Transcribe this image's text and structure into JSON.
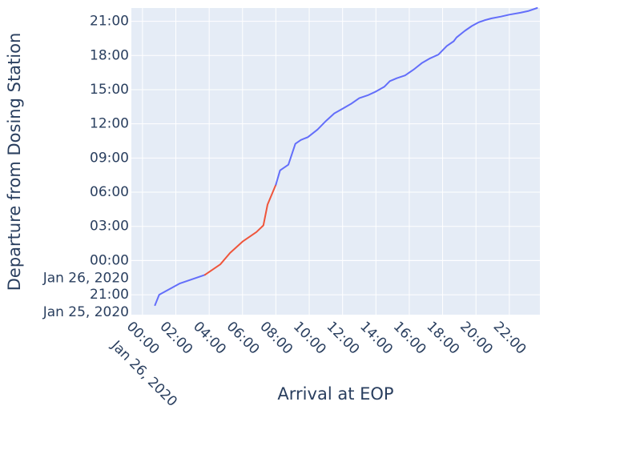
{
  "chart_data": {
    "type": "line",
    "xlabel": "Arrival at EOP",
    "ylabel": "Departure from Dosing Station",
    "x_tick_labels": [
      "00:00",
      "02:00",
      "04:00",
      "06:00",
      "08:00",
      "10:00",
      "12:00",
      "14:00",
      "16:00",
      "18:00",
      "20:00",
      "22:00"
    ],
    "x_date_label": "Jan 26, 2020",
    "y_tick_labels": [
      "21:00",
      "18:00",
      "15:00",
      "12:00",
      "09:00",
      "06:00",
      "03:00",
      "00:00",
      "21:00"
    ],
    "y_date_labels": [
      "Jan 26, 2020",
      "Jan 25, 2020"
    ],
    "x_range": [
      "2020-01-25 23:20",
      "2020-01-26 23:50"
    ],
    "y_range": [
      "2020-01-25 19:15",
      "2020-01-26 22:10"
    ],
    "grid": true,
    "colors": {
      "plot_background": "#e5ecf6",
      "grid": "#ffffff",
      "series_blue": "#636efa",
      "series_red": "#ef553b",
      "text": "#2a3f5f"
    },
    "series": [
      {
        "color": "#636efa",
        "points": [
          [
            "2020-01-26 00:45",
            "2020-01-25 20:05"
          ],
          [
            "2020-01-26 01:00",
            "2020-01-25 21:00"
          ],
          [
            "2020-01-26 02:15",
            "2020-01-25 22:00"
          ],
          [
            "2020-01-26 03:45",
            "2020-01-25 22:45"
          ]
        ]
      },
      {
        "color": "#ef553b",
        "points": [
          [
            "2020-01-26 03:45",
            "2020-01-25 22:45"
          ],
          [
            "2020-01-26 04:40",
            "2020-01-25 23:40"
          ],
          [
            "2020-01-26 05:15",
            "2020-01-26 00:40"
          ],
          [
            "2020-01-26 06:00",
            "2020-01-26 01:40"
          ],
          [
            "2020-01-26 06:50",
            "2020-01-26 02:30"
          ],
          [
            "2020-01-26 07:15",
            "2020-01-26 03:05"
          ],
          [
            "2020-01-26 07:30",
            "2020-01-26 04:55"
          ],
          [
            "2020-01-26 08:00",
            "2020-01-26 06:40"
          ]
        ]
      },
      {
        "color": "#636efa",
        "points": [
          [
            "2020-01-26 08:00",
            "2020-01-26 06:40"
          ],
          [
            "2020-01-26 08:15",
            "2020-01-26 07:55"
          ],
          [
            "2020-01-26 08:45",
            "2020-01-26 08:25"
          ],
          [
            "2020-01-26 09:10",
            "2020-01-26 10:15"
          ],
          [
            "2020-01-26 09:30",
            "2020-01-26 10:35"
          ],
          [
            "2020-01-26 09:55",
            "2020-01-26 10:50"
          ],
          [
            "2020-01-26 10:30",
            "2020-01-26 11:30"
          ],
          [
            "2020-01-26 11:00",
            "2020-01-26 12:15"
          ],
          [
            "2020-01-26 11:30",
            "2020-01-26 12:55"
          ],
          [
            "2020-01-26 12:00",
            "2020-01-26 13:20"
          ],
          [
            "2020-01-26 12:30",
            "2020-01-26 13:45"
          ],
          [
            "2020-01-26 13:00",
            "2020-01-26 14:15"
          ],
          [
            "2020-01-26 13:30",
            "2020-01-26 14:30"
          ],
          [
            "2020-01-26 14:00",
            "2020-01-26 14:50"
          ],
          [
            "2020-01-26 14:30",
            "2020-01-26 15:15"
          ],
          [
            "2020-01-26 14:50",
            "2020-01-26 15:45"
          ],
          [
            "2020-01-26 15:15",
            "2020-01-26 16:00"
          ],
          [
            "2020-01-26 15:45",
            "2020-01-26 16:15"
          ],
          [
            "2020-01-26 16:15",
            "2020-01-26 16:45"
          ],
          [
            "2020-01-26 16:45",
            "2020-01-26 17:20"
          ],
          [
            "2020-01-26 17:15",
            "2020-01-26 17:45"
          ],
          [
            "2020-01-26 17:45",
            "2020-01-26 18:05"
          ],
          [
            "2020-01-26 18:15",
            "2020-01-26 18:50"
          ],
          [
            "2020-01-26 18:40",
            "2020-01-26 19:15"
          ],
          [
            "2020-01-26 18:50",
            "2020-01-26 19:35"
          ],
          [
            "2020-01-26 19:20",
            "2020-01-26 20:10"
          ],
          [
            "2020-01-26 19:45",
            "2020-01-26 20:35"
          ],
          [
            "2020-01-26 20:10",
            "2020-01-26 20:55"
          ],
          [
            "2020-01-26 20:30",
            "2020-01-26 21:05"
          ],
          [
            "2020-01-26 20:55",
            "2020-01-26 21:15"
          ],
          [
            "2020-01-26 21:30",
            "2020-01-26 21:25"
          ],
          [
            "2020-01-26 22:00",
            "2020-01-26 21:35"
          ],
          [
            "2020-01-26 22:40",
            "2020-01-26 21:45"
          ],
          [
            "2020-01-26 23:10",
            "2020-01-26 21:55"
          ],
          [
            "2020-01-26 23:40",
            "2020-01-26 22:10"
          ]
        ]
      }
    ]
  }
}
